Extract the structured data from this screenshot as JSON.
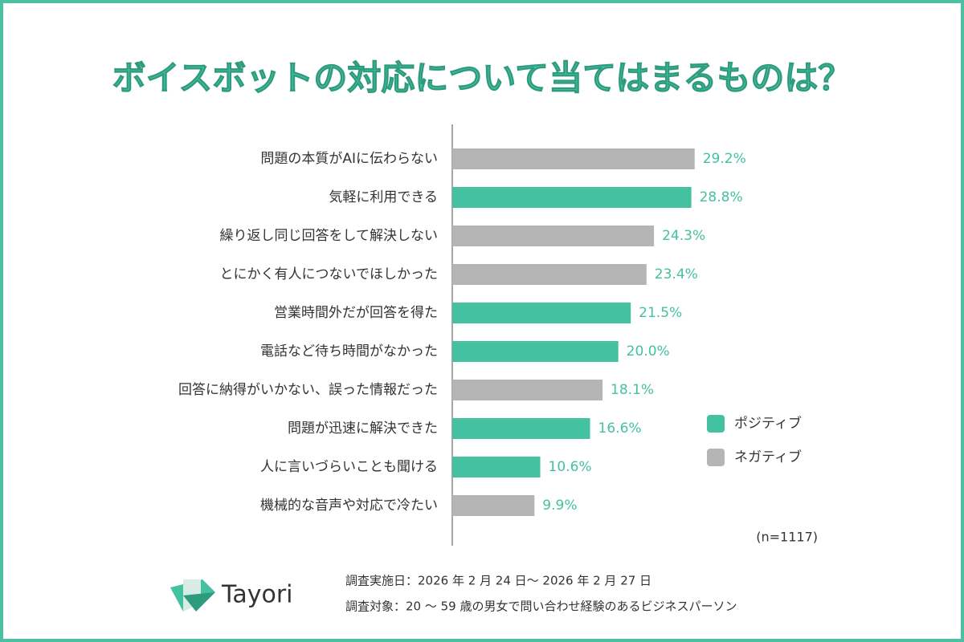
{
  "chart_data": {
    "type": "bar",
    "title": "ボイスボットの対応について当てはまるものは？",
    "categories": [
      "問題の本質がAIに伝わらない",
      "気軽に利用できる",
      "繰り返し同じ回答をして解決しない",
      "とにかく有人につないでほしかった",
      "営業時間外だが回答を得た",
      "電話など待ち時間がなかった",
      "回答に納得がいかない、誤った情報だった",
      "問題が迅速に解決できた",
      "人に言いづらいことも聞ける",
      "機械的な音声や対応で冷たい"
    ],
    "values": [
      29.2,
      28.8,
      24.3,
      23.4,
      21.5,
      20.0,
      18.1,
      16.6,
      10.6,
      9.9
    ],
    "value_labels": [
      "29.2%",
      "28.8%",
      "24.3%",
      "23.4%",
      "21.5%",
      "20.0%",
      "18.1%",
      "16.6%",
      "10.6%",
      "9.9%"
    ],
    "colors": [
      "#b4b5b4",
      "#44c1a0",
      "#b4b5b4",
      "#b4b5b4",
      "#44c1a0",
      "#44c1a0",
      "#b4b5b4",
      "#44c1a0",
      "#44c1a0",
      "#b4b5b4"
    ],
    "legend": [
      {
        "name": "ポジティブ",
        "color": "#44c1a0"
      },
      {
        "name": "ネガティブ",
        "color": "#b4b5b4"
      }
    ],
    "xlim": [
      0,
      30
    ],
    "annotation": "(n=1117)"
  },
  "footer": {
    "logo": "Tayori",
    "survey_period": "調査実施日：2026 年 2 月 24 日〜 2026 年 2 月 27 日",
    "survey_target": "調査対象：20 〜 59 歳の男女で問い合わせ経験のあるビジネスパーソン"
  }
}
